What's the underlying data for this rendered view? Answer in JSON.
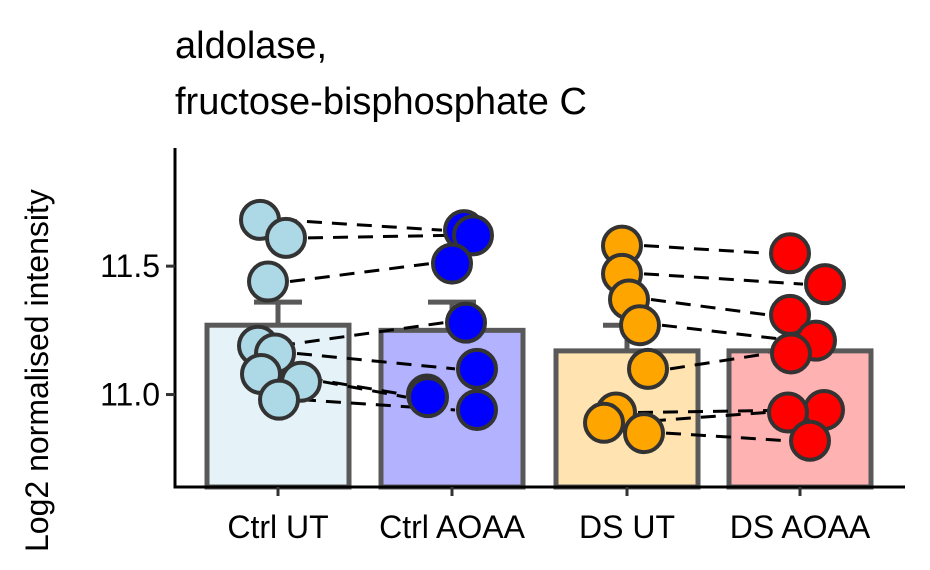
{
  "chart_data": {
    "type": "bar",
    "title": [
      "aldolase,",
      "fructose-bisphosphate C"
    ],
    "xlabel": "",
    "ylabel": "Log2 normalised intensity",
    "ylim": [
      10.64,
      11.96
    ],
    "yticks": [
      11.0,
      11.5
    ],
    "ytick_labels": [
      "11.0",
      "11.5"
    ],
    "grid": false,
    "legend": "none",
    "categories": [
      "Ctrl UT",
      "Ctrl AOAA",
      "DS UT",
      "DS AOAA"
    ],
    "bars": [
      {
        "category": "Ctrl UT",
        "mean": 11.27,
        "error_top": 11.36,
        "fill": "#e5f3f9",
        "point_color": "#add8e6"
      },
      {
        "category": "Ctrl AOAA",
        "mean": 11.25,
        "error_top": 11.36,
        "fill": "#b2b2ff",
        "point_color": "#0000ff"
      },
      {
        "category": "DS UT",
        "mean": 11.17,
        "error_top": 11.27,
        "fill": "#ffe3b1",
        "point_color": "#ffa500"
      },
      {
        "category": "DS AOAA",
        "mean": 11.17,
        "error_top": 11.26,
        "fill": "#ffb2b2",
        "point_color": "#ff0000"
      }
    ],
    "points": {
      "Ctrl UT": [
        11.68,
        11.61,
        11.44,
        11.19,
        11.16,
        11.08,
        11.05,
        10.98
      ],
      "Ctrl AOAA": [
        11.64,
        11.62,
        11.51,
        11.28,
        11.1,
        11.0,
        10.99,
        10.94
      ],
      "DS UT": [
        11.58,
        11.47,
        11.37,
        11.27,
        11.1,
        10.93,
        10.89,
        10.85
      ],
      "DS AOAA": [
        11.55,
        11.43,
        11.31,
        11.21,
        11.16,
        10.94,
        10.93,
        10.82
      ]
    },
    "pairs": [
      {
        "from": "Ctrl UT",
        "to": "Ctrl AOAA",
        "links": [
          [
            11.68,
            11.64
          ],
          [
            11.61,
            11.62
          ],
          [
            11.44,
            11.51
          ],
          [
            11.19,
            11.28
          ],
          [
            11.16,
            11.1
          ],
          [
            11.08,
            11.0
          ],
          [
            11.05,
            10.99
          ],
          [
            10.98,
            10.94
          ]
        ]
      },
      {
        "from": "DS UT",
        "to": "DS AOAA",
        "links": [
          [
            11.58,
            11.55
          ],
          [
            11.47,
            11.43
          ],
          [
            11.37,
            11.31
          ],
          [
            11.27,
            11.21
          ],
          [
            11.1,
            11.16
          ],
          [
            10.93,
            10.94
          ],
          [
            10.89,
            10.93
          ],
          [
            10.85,
            10.82
          ]
        ]
      }
    ]
  }
}
